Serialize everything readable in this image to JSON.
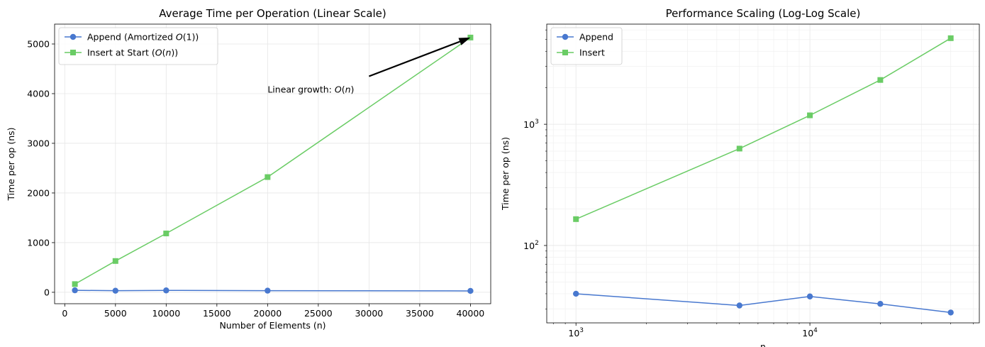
{
  "chart_data": [
    {
      "type": "line",
      "title": "Average Time per Operation (Linear Scale)",
      "xlabel": "Number of Elements (n)",
      "ylabel": "Time per op (ns)",
      "xlim": [
        -1000,
        42000
      ],
      "ylim": [
        -230,
        5400
      ],
      "xticks": [
        0,
        5000,
        10000,
        15000,
        20000,
        25000,
        30000,
        35000,
        40000
      ],
      "xtick_labels": [
        "0",
        "5000",
        "10000",
        "15000",
        "20000",
        "25000",
        "30000",
        "35000",
        "40000"
      ],
      "yticks": [
        0,
        1000,
        2000,
        3000,
        4000,
        5000
      ],
      "ytick_labels": [
        "0",
        "1000",
        "2000",
        "3000",
        "4000",
        "5000"
      ],
      "grid": true,
      "legend_position": "top-left",
      "x": [
        1000,
        5000,
        10000,
        20000,
        40000
      ],
      "series": [
        {
          "name": "Append (Amortized O(1))",
          "legend_parts": [
            "Append (Amortized ",
            "O",
            "(1))"
          ],
          "values": [
            40,
            32,
            38,
            33,
            28
          ],
          "color": "#4878cf",
          "marker": "circle"
        },
        {
          "name": "Insert at Start (O(n))",
          "legend_parts": [
            "Insert at Start (",
            "O",
            "(",
            "n",
            "))"
          ],
          "values": [
            165,
            630,
            1185,
            2320,
            5130
          ],
          "color": "#6acc65",
          "marker": "square"
        }
      ],
      "annotation": {
        "text_parts": [
          "Linear growth: ",
          "O",
          "(",
          "n",
          ")"
        ],
        "text_x": 20000,
        "text_y": 4080,
        "arrow_from": [
          30000,
          4350
        ],
        "arrow_to": [
          40000,
          5130
        ]
      }
    },
    {
      "type": "line",
      "title": "Performance Scaling (Log-Log Scale)",
      "xlabel": "n",
      "ylabel": "Time per op (ns)",
      "x_scale": "log",
      "y_scale": "log",
      "xlim": [
        750,
        53000
      ],
      "ylim": [
        23,
        6700
      ],
      "xticks": [
        1000,
        10000
      ],
      "xtick_labels": [
        [
          "10",
          "3"
        ],
        [
          "10",
          "4"
        ]
      ],
      "yticks": [
        100,
        1000
      ],
      "ytick_labels": [
        [
          "10",
          "2"
        ],
        [
          "10",
          "3"
        ]
      ],
      "grid": true,
      "legend_position": "top-left",
      "x": [
        1000,
        5000,
        10000,
        20000,
        40000
      ],
      "series": [
        {
          "name": "Append",
          "values": [
            40,
            32,
            38,
            33,
            28
          ],
          "color": "#4878cf",
          "marker": "circle"
        },
        {
          "name": "Insert",
          "values": [
            165,
            630,
            1185,
            2320,
            5130
          ],
          "color": "#6acc65",
          "marker": "square"
        }
      ]
    }
  ]
}
